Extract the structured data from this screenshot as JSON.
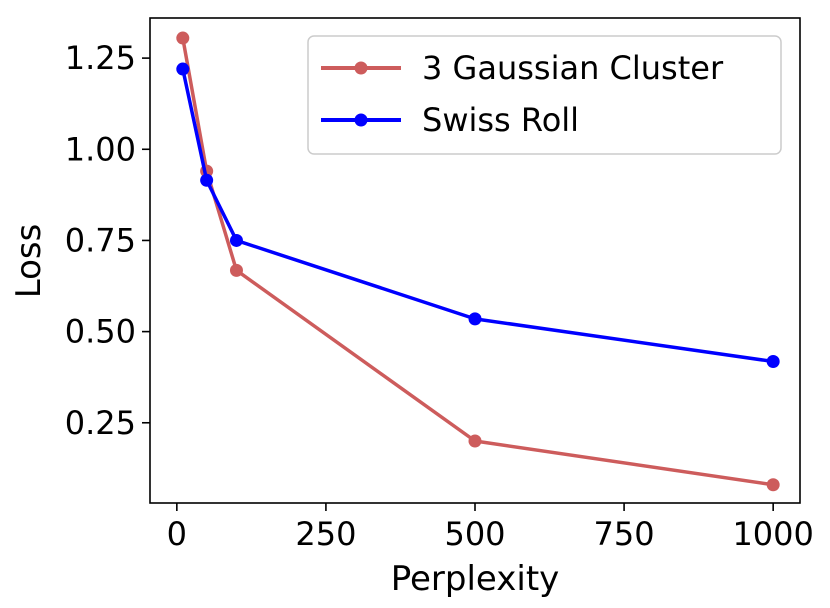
{
  "chart_data": {
    "type": "line",
    "xlabel": "Perplexity",
    "ylabel": "Loss",
    "xlim": [
      -45,
      1045
    ],
    "ylim": [
      0.03,
      1.36
    ],
    "xticks": [
      0,
      250,
      500,
      750,
      1000
    ],
    "yticks": [
      0.25,
      0.5,
      0.75,
      1.0,
      1.25
    ],
    "xtick_labels": [
      "0",
      "250",
      "500",
      "750",
      "1000"
    ],
    "ytick_labels": [
      "0.25",
      "0.50",
      "0.75",
      "1.00",
      "1.25"
    ],
    "grid": false,
    "legend_position": "top-right",
    "series": [
      {
        "name": "3 Gaussian Cluster",
        "color": "#cd5c5c",
        "x": [
          10,
          50,
          100,
          500,
          1000
        ],
        "y": [
          1.305,
          0.94,
          0.668,
          0.2,
          0.08
        ]
      },
      {
        "name": "Swiss Roll",
        "color": "#0000ff",
        "x": [
          10,
          50,
          100,
          500,
          1000
        ],
        "y": [
          1.22,
          0.915,
          0.75,
          0.535,
          0.418
        ]
      }
    ]
  }
}
